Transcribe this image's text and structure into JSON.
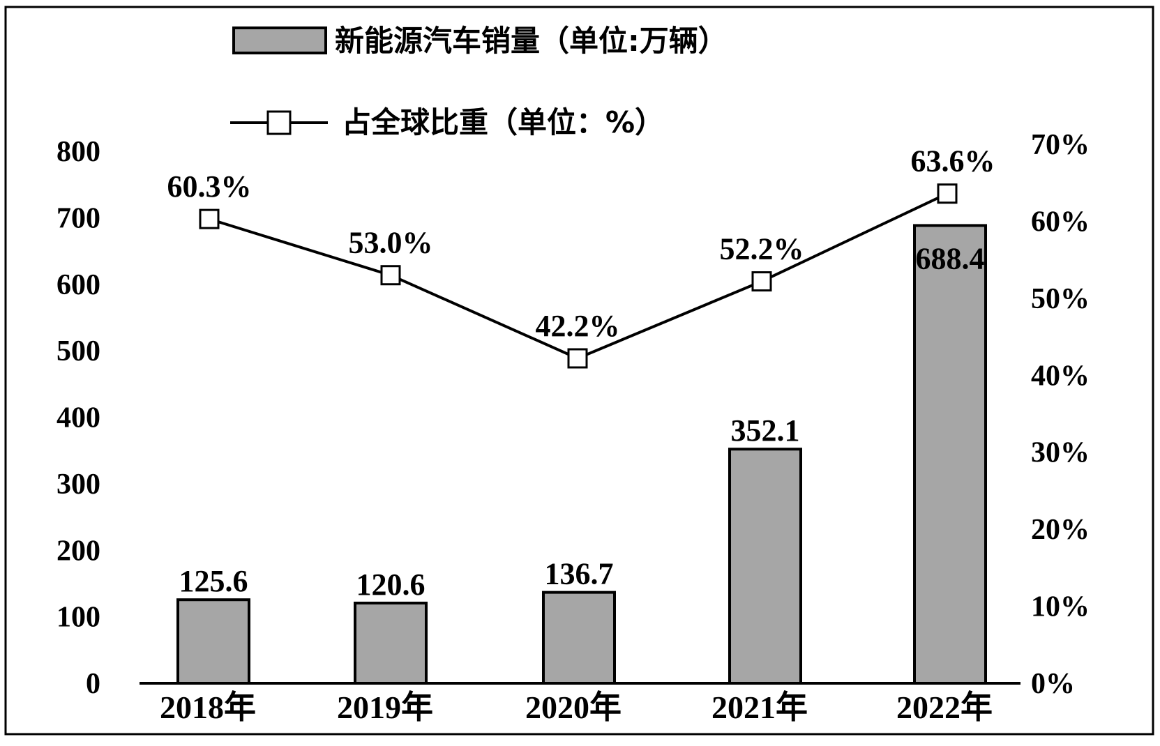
{
  "chart_data": {
    "type": "bar",
    "categories": [
      "2018年",
      "2019年",
      "2020年",
      "2021年",
      "2022年"
    ],
    "series": [
      {
        "name": "新能源汽车销量（单位:万辆）",
        "type": "bar",
        "axis": "left",
        "values": [
          125.6,
          120.6,
          136.7,
          352.1,
          688.4
        ],
        "labels": [
          "125.6",
          "120.6",
          "136.7",
          "352.1",
          "688.4"
        ]
      },
      {
        "name": "占全球比重（单位：%）",
        "type": "line",
        "axis": "right",
        "values": [
          60.3,
          53.0,
          42.2,
          52.2,
          63.6
        ],
        "labels": [
          "60.3%",
          "53.0%",
          "42.2%",
          "52.2%",
          "63.6%"
        ]
      }
    ],
    "y_left": {
      "range": [
        0,
        800
      ],
      "ticks": [
        "0",
        "100",
        "200",
        "300",
        "400",
        "500",
        "600",
        "700",
        "800"
      ]
    },
    "y_right": {
      "range": [
        0,
        70
      ],
      "ticks": [
        "0%",
        "10%",
        "20%",
        "30%",
        "40%",
        "50%",
        "60%",
        "70%"
      ]
    },
    "legend": "top",
    "grid": false,
    "colors": {
      "bar_fill": "#a6a6a6",
      "stroke": "#000000",
      "marker_fill": "#ffffff",
      "background": "#ffffff"
    }
  }
}
